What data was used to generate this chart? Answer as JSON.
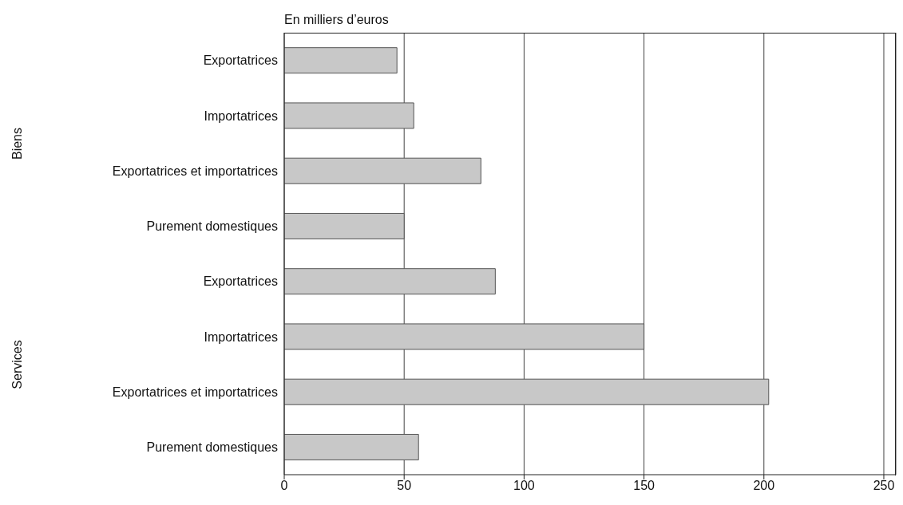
{
  "chart_data": {
    "type": "bar",
    "orientation": "horizontal",
    "title": "En milliers d’euros",
    "categories": [
      "Exportatrices",
      "Importatrices",
      "Exportatrices et importatrices",
      "Purement domestiques",
      "Exportatrices",
      "Importatrices",
      "Exportatrices et importatrices",
      "Purement domestiques"
    ],
    "values": [
      47,
      54,
      82,
      50,
      88,
      150,
      202,
      56
    ],
    "color": "#c8c8c8",
    "xlim": [
      0,
      255
    ],
    "xticks": [
      0,
      50,
      100,
      150,
      200,
      250
    ],
    "grid": "x",
    "annotations": [
      "Biens",
      "Services"
    ]
  }
}
